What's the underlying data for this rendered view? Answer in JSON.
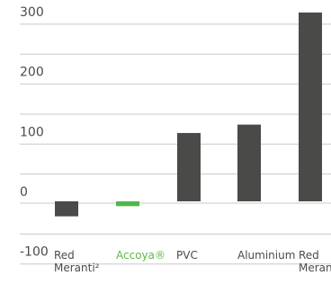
{
  "chart_data": {
    "type": "bar",
    "categories": [
      "Red Meranti²",
      "Accoya®",
      "PVC",
      "Aluminium",
      "Red Meranti"
    ],
    "category_lines": [
      [
        "Red",
        "Meranti²"
      ],
      [
        "Accoya®"
      ],
      [
        "PVC"
      ],
      [
        "Aluminium"
      ],
      [
        "Red",
        "Meranti"
      ]
    ],
    "values": [
      -25,
      -8,
      114,
      128,
      315
    ],
    "highlight_index": 1,
    "colors": {
      "bar": "#4a4a48",
      "highlight": "#4fb748",
      "highlight_label": "#5fb946",
      "grid": "#c9c9c9",
      "text": "#4a4a4a"
    },
    "yticks": [
      300,
      200,
      100,
      0,
      -100
    ],
    "ytick_labels": [
      "300",
      "200",
      "100",
      "0",
      "-100"
    ],
    "ylim": [
      -100,
      330
    ],
    "grid": true,
    "title": "",
    "xlabel": "",
    "ylabel": ""
  }
}
